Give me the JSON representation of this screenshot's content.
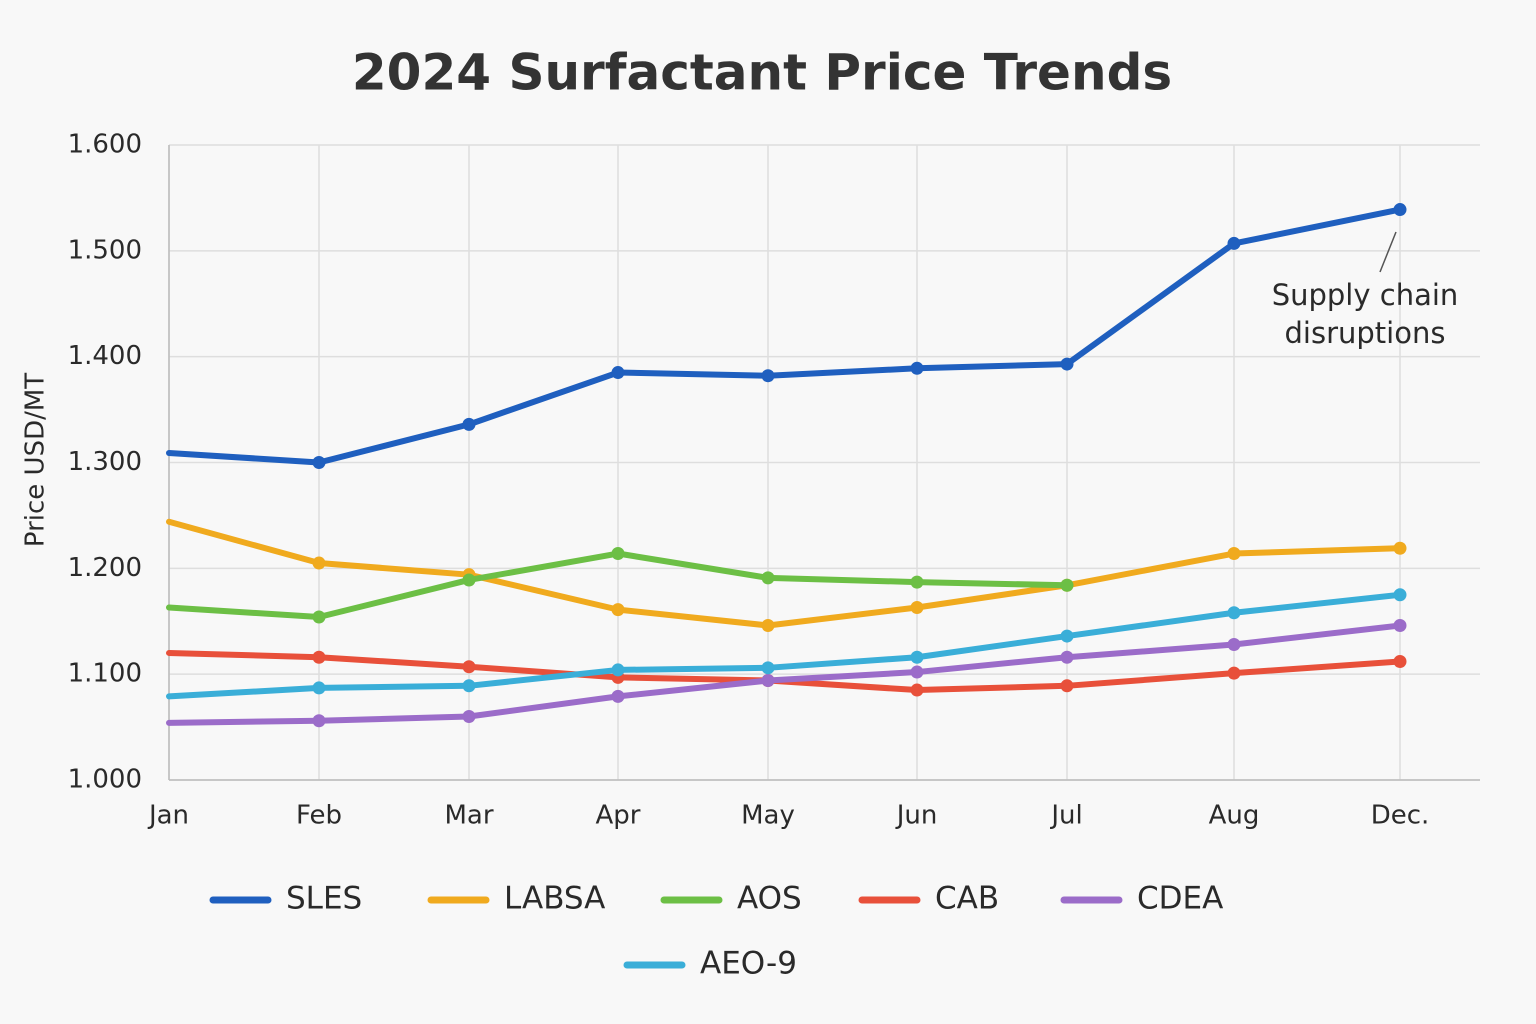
{
  "chart_data": {
    "type": "line",
    "title": "2024 Surfactant Price Trends",
    "y_label": "Price USD/MT",
    "categories": [
      "Jan",
      "Feb",
      "Mar",
      "Apr",
      "May",
      "Jun",
      "Jul",
      "Aug",
      "Dec."
    ],
    "ylim": [
      1000,
      1600
    ],
    "yticks": [
      {
        "value": 1000,
        "label": "1.000"
      },
      {
        "value": 1100,
        "label": "1.100"
      },
      {
        "value": 1200,
        "label": "1.200"
      },
      {
        "value": 1300,
        "label": "1.300"
      },
      {
        "value": 1400,
        "label": "1.400"
      },
      {
        "value": 1500,
        "label": "1.500"
      },
      {
        "value": 1600,
        "label": "1.600"
      }
    ],
    "grid": true,
    "legend": "bottom",
    "series": [
      {
        "name": "SLES",
        "color": "#1f5fbf",
        "values": [
          1309,
          1300,
          1336,
          1385,
          1382,
          1389,
          1393,
          1507,
          1539
        ]
      },
      {
        "name": "LABSA",
        "color": "#f0aa1e",
        "values": [
          1244,
          1205,
          1194,
          1161,
          1146,
          1163,
          1184,
          1214,
          1219
        ]
      },
      {
        "name": "AOS",
        "color": "#6cbf45",
        "values": [
          1163,
          1154,
          1189,
          1214,
          1191,
          1187,
          1184,
          null,
          null
        ]
      },
      {
        "name": "CAB",
        "color": "#e8503a",
        "values": [
          1120,
          1116,
          1107,
          1097,
          1094,
          1085,
          1089,
          1101,
          1112
        ]
      },
      {
        "name": "CDEA",
        "color": "#9b6cc9",
        "values": [
          1054,
          1056,
          1060,
          1079,
          1094,
          1102,
          1116,
          1128,
          1146
        ]
      },
      {
        "name": "AEO-9",
        "color": "#3aaed8",
        "values": [
          1079,
          1087,
          1089,
          1104,
          1106,
          1116,
          1136,
          1158,
          1175
        ]
      }
    ],
    "annotation": [
      "Supply chain",
      "disruptions"
    ]
  }
}
